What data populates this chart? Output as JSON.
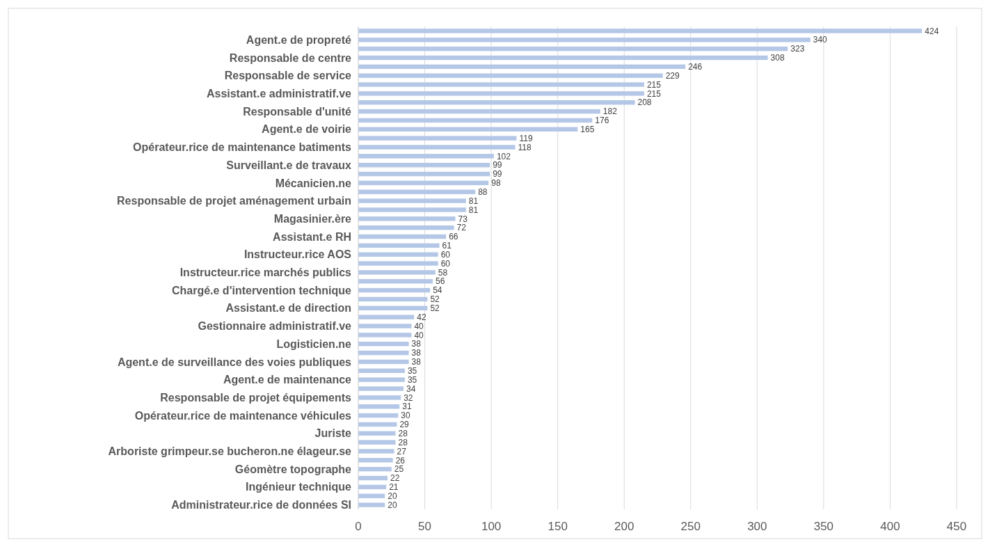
{
  "chart_data": {
    "type": "bar",
    "orientation": "horizontal",
    "categories": [
      null,
      "Agent.e de propreté",
      null,
      "Responsable de centre",
      null,
      "Responsable de service",
      null,
      "Assistant.e administratif.ve",
      null,
      "Responsable d'unité",
      null,
      "Agent.e de voirie",
      null,
      "Opérateur.rice de maintenance batiments",
      null,
      "Surveillant.e de travaux",
      null,
      "Mécanicien.ne",
      null,
      "Responsable de projet aménagement urbain",
      null,
      "Magasinier.ère",
      null,
      "Assistant.e RH",
      null,
      "Instructeur.rice AOS",
      null,
      "Instructeur.rice marchés publics",
      null,
      "Chargé.e d'intervention technique",
      null,
      "Assistant.e de direction",
      null,
      "Gestionnaire administratif.ve",
      null,
      "Logisticien.ne",
      null,
      "Agent.e de surveillance des voies publiques",
      null,
      "Agent.e de maintenance",
      null,
      "Responsable de projet équipements",
      null,
      "Opérateur.rice de maintenance véhicules",
      null,
      "Juriste",
      null,
      "Arboriste grimpeur.se bucheron.ne élageur.se",
      null,
      "Géomètre topographe",
      null,
      "Ingénieur technique",
      null,
      "Administrateur.rice de données SI"
    ],
    "values": [
      424,
      340,
      323,
      308,
      246,
      229,
      215,
      215,
      208,
      182,
      176,
      165,
      119,
      118,
      102,
      99,
      99,
      98,
      88,
      81,
      81,
      73,
      72,
      66,
      61,
      60,
      60,
      58,
      56,
      54,
      52,
      52,
      42,
      40,
      40,
      38,
      38,
      38,
      35,
      35,
      34,
      32,
      31,
      30,
      29,
      28,
      28,
      27,
      26,
      25,
      22,
      21,
      20,
      20
    ],
    "color": "#b4c7e7",
    "xlim": [
      0,
      450
    ],
    "xticks": [
      0,
      50,
      100,
      150,
      200,
      250,
      300,
      350,
      400,
      450
    ],
    "grid": "x",
    "data_labels": true
  }
}
